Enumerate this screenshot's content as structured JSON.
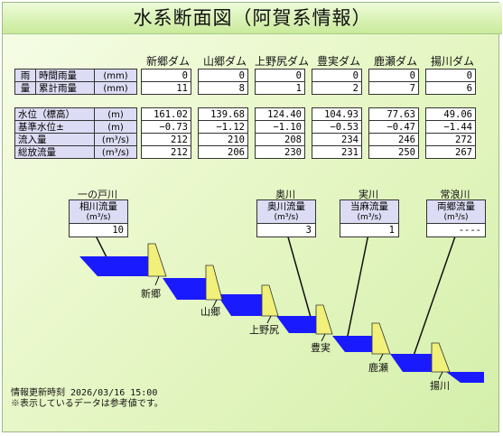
{
  "title": "水系断面図（阿賀系情報）",
  "dams": [
    "新郷ダム",
    "山郷ダム",
    "上野尻ダム",
    "豊実ダム",
    "鹿瀬ダム",
    "揚川ダム"
  ],
  "rain": {
    "group_top": "雨",
    "group_bottom": "量",
    "rows": [
      {
        "label": "時間雨量",
        "unit": "(mm)",
        "values": [
          "0",
          "0",
          "0",
          "0",
          "0",
          "0"
        ]
      },
      {
        "label": "累計雨量",
        "unit": "(mm)",
        "values": [
          "11",
          "8",
          "1",
          "2",
          "7",
          "6"
        ]
      }
    ]
  },
  "metrics": [
    {
      "label": "水位（標高）",
      "unit": "(m)",
      "values": [
        "161.02",
        "139.68",
        "124.40",
        "104.93",
        "77.63",
        "49.06"
      ]
    },
    {
      "label": "基準水位±",
      "unit": "(m)",
      "values": [
        "−0.73",
        "−1.12",
        "−1.10",
        "−0.53",
        "−0.47",
        "−1.44"
      ]
    },
    {
      "label": "流入量",
      "unit": "(m³/s)",
      "values": [
        "212",
        "210",
        "208",
        "234",
        "246",
        "272"
      ]
    },
    {
      "label": "総放流量",
      "unit": "(m³/s)",
      "values": [
        "212",
        "206",
        "230",
        "231",
        "250",
        "267"
      ]
    }
  ],
  "tributaries": [
    {
      "river": "一の戸川",
      "label": "相川流量",
      "unit": "(m³/s)",
      "value": "10"
    },
    {
      "river": "奥川",
      "label": "奥川流量",
      "unit": "(m³/s)",
      "value": "3"
    },
    {
      "river": "実川",
      "label": "当麻流量",
      "unit": "(m³/s)",
      "value": "1"
    },
    {
      "river": "常浪川",
      "label": "両郷流量",
      "unit": "(m³/s)",
      "value": "----"
    }
  ],
  "dam_labels": [
    "新郷",
    "山郷",
    "上野尻",
    "豊実",
    "鹿瀬",
    "揚川"
  ],
  "footer": {
    "update": "情報更新時刻 2026/03/16 15:00",
    "note": "※表示しているデータは参考値です。"
  },
  "colors": {
    "water": "#1a1aff",
    "dam": "#f0f07a",
    "header_cell": "#dcdcf4",
    "background": "#e4f6c4"
  }
}
